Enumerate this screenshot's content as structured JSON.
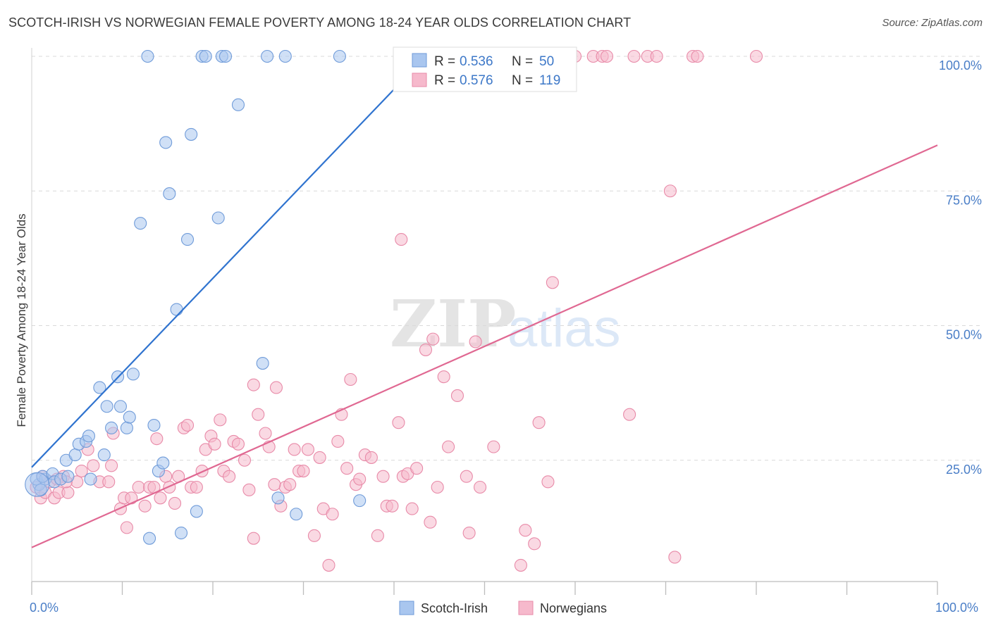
{
  "title": "SCOTCH-IRISH VS NORWEGIAN FEMALE POVERTY AMONG 18-24 YEAR OLDS CORRELATION CHART",
  "source": "Source: ZipAtlas.com",
  "watermark": {
    "zip": "ZIP",
    "atlas": "atlas"
  },
  "colors": {
    "scotch_fill": "#a9c6ef",
    "scotch_stroke": "#6f9bd9",
    "scotch_line": "#2f73cf",
    "norw_fill": "#f6b9cc",
    "norw_stroke": "#e88aa8",
    "norw_line": "#e06892",
    "tick": "#4a7ec7",
    "grid": "#d9d9d9"
  },
  "legend_top": [
    {
      "r_label": "R =",
      "r_value": "0.536",
      "n_label": "N =",
      "n_value": "50"
    },
    {
      "r_label": "R =",
      "r_value": "0.576",
      "n_label": "N =",
      "n_value": "119"
    }
  ],
  "chart_data": {
    "type": "scatter",
    "title": "SCOTCH-IRISH VS NORWEGIAN FEMALE POVERTY AMONG 18-24 YEAR OLDS CORRELATION CHART",
    "xlabel": "",
    "ylabel": "Female Poverty Among 18-24 Year Olds",
    "xlim": [
      0,
      100
    ],
    "ylim": [
      0,
      100
    ],
    "x_tick_labels": [
      "0.0%",
      "100.0%"
    ],
    "y_ticks": [
      25,
      50,
      75,
      100
    ],
    "y_tick_labels": [
      "25.0%",
      "50.0%",
      "75.0%",
      "100.0%"
    ],
    "grid": "horizontal dashed",
    "legend_position": "top-center",
    "series": [
      {
        "name": "Scotch-Irish",
        "R": 0.536,
        "N": 50,
        "trend": {
          "x": [
            0,
            43.5
          ],
          "y": [
            23.7,
            100
          ]
        },
        "points": [
          [
            0.8,
            20.5
          ],
          [
            0.5,
            21.5
          ],
          [
            1.5,
            21.5
          ],
          [
            1.2,
            22
          ],
          [
            2.3,
            22.5
          ],
          [
            2.5,
            21
          ],
          [
            3.2,
            21.5
          ],
          [
            4.0,
            22
          ],
          [
            3.8,
            25
          ],
          [
            4.8,
            26
          ],
          [
            5.2,
            28
          ],
          [
            6.0,
            28.5
          ],
          [
            6.3,
            29.5
          ],
          [
            7.5,
            38.5
          ],
          [
            8.0,
            26
          ],
          [
            8.3,
            35
          ],
          [
            8.8,
            31
          ],
          [
            9.5,
            40.5
          ],
          [
            9.8,
            35
          ],
          [
            10.5,
            31
          ],
          [
            10.8,
            33
          ],
          [
            11.2,
            41
          ],
          [
            12.0,
            69
          ],
          [
            12.8,
            100
          ],
          [
            13.0,
            10.5
          ],
          [
            13.5,
            31.5
          ],
          [
            14.0,
            23
          ],
          [
            14.5,
            24.5
          ],
          [
            14.8,
            84
          ],
          [
            15.2,
            74.5
          ],
          [
            16.0,
            53
          ],
          [
            16.5,
            11.5
          ],
          [
            17.2,
            66
          ],
          [
            17.6,
            85.5
          ],
          [
            18.2,
            15.5
          ],
          [
            18.8,
            100
          ],
          [
            19.2,
            100
          ],
          [
            20.6,
            70
          ],
          [
            21.0,
            100
          ],
          [
            21.4,
            100
          ],
          [
            22.8,
            91
          ],
          [
            25.5,
            43
          ],
          [
            26.0,
            100
          ],
          [
            27.2,
            18
          ],
          [
            28.0,
            100
          ],
          [
            29.2,
            15
          ],
          [
            34.0,
            100
          ],
          [
            36.2,
            17.5
          ],
          [
            6.5,
            21.5
          ],
          [
            1.0,
            19.5
          ]
        ]
      },
      {
        "name": "Norwegians",
        "R": 0.576,
        "N": 119,
        "trend": {
          "x": [
            0,
            100
          ],
          "y": [
            8.8,
            83.5
          ]
        },
        "points": [
          [
            0.5,
            20
          ],
          [
            1.0,
            18
          ],
          [
            1.5,
            19
          ],
          [
            2.0,
            21
          ],
          [
            2.5,
            18
          ],
          [
            3.0,
            19
          ],
          [
            3.5,
            22
          ],
          [
            4.0,
            19
          ],
          [
            5.0,
            21
          ],
          [
            5.5,
            23
          ],
          [
            6.2,
            27
          ],
          [
            6.8,
            24
          ],
          [
            7.5,
            21
          ],
          [
            8.5,
            21
          ],
          [
            8.8,
            24
          ],
          [
            9.0,
            30
          ],
          [
            9.8,
            16
          ],
          [
            10.2,
            18
          ],
          [
            10.5,
            12.5
          ],
          [
            11.0,
            18
          ],
          [
            11.8,
            20
          ],
          [
            12.5,
            16.5
          ],
          [
            13.0,
            20
          ],
          [
            13.5,
            20
          ],
          [
            13.8,
            29
          ],
          [
            14.2,
            18
          ],
          [
            14.8,
            22
          ],
          [
            15.2,
            20
          ],
          [
            15.8,
            17
          ],
          [
            16.2,
            22
          ],
          [
            16.8,
            31
          ],
          [
            17.2,
            31.5
          ],
          [
            17.6,
            20
          ],
          [
            18.2,
            20
          ],
          [
            18.8,
            23
          ],
          [
            19.2,
            27
          ],
          [
            19.8,
            29.5
          ],
          [
            20.2,
            28
          ],
          [
            20.8,
            32.5
          ],
          [
            21.2,
            23
          ],
          [
            21.8,
            22
          ],
          [
            22.3,
            28.5
          ],
          [
            22.8,
            28
          ],
          [
            23.5,
            25
          ],
          [
            24.0,
            19.5
          ],
          [
            24.5,
            39
          ],
          [
            24.5,
            10.5
          ],
          [
            25.0,
            33.5
          ],
          [
            25.8,
            30
          ],
          [
            26.2,
            27.5
          ],
          [
            27.0,
            38.5
          ],
          [
            27.5,
            16.5
          ],
          [
            28.0,
            20
          ],
          [
            28.5,
            20.5
          ],
          [
            29.0,
            27
          ],
          [
            29.5,
            23
          ],
          [
            30.0,
            23
          ],
          [
            30.5,
            27
          ],
          [
            31.2,
            11
          ],
          [
            31.8,
            25.5
          ],
          [
            32.2,
            16
          ],
          [
            32.8,
            5.5
          ],
          [
            33.2,
            15
          ],
          [
            33.8,
            28.5
          ],
          [
            34.2,
            33.5
          ],
          [
            34.8,
            23.5
          ],
          [
            35.2,
            40
          ],
          [
            35.8,
            20.5
          ],
          [
            36.2,
            21.5
          ],
          [
            36.8,
            26
          ],
          [
            37.5,
            25.5
          ],
          [
            38.2,
            11
          ],
          [
            38.8,
            22
          ],
          [
            39.2,
            16.5
          ],
          [
            39.8,
            16.5
          ],
          [
            40.5,
            32
          ],
          [
            41.0,
            22
          ],
          [
            41.5,
            22.5
          ],
          [
            42.0,
            16
          ],
          [
            42.5,
            23.5
          ],
          [
            43.5,
            45.5
          ],
          [
            44.0,
            13.5
          ],
          [
            44.3,
            47.5
          ],
          [
            44.8,
            20
          ],
          [
            45.5,
            40.5
          ],
          [
            46.0,
            27.5
          ],
          [
            47.0,
            37
          ],
          [
            48.0,
            22
          ],
          [
            48.3,
            11.5
          ],
          [
            49.0,
            47
          ],
          [
            49.5,
            20
          ],
          [
            51.0,
            27.5
          ],
          [
            53.5,
            100
          ],
          [
            54.0,
            5.5
          ],
          [
            54.5,
            12
          ],
          [
            55.5,
            9.5
          ],
          [
            56.0,
            32
          ],
          [
            57.0,
            21
          ],
          [
            57.5,
            58
          ],
          [
            60.0,
            100
          ],
          [
            62.0,
            100
          ],
          [
            63.0,
            100
          ],
          [
            63.5,
            100
          ],
          [
            66.0,
            33.5
          ],
          [
            66.5,
            100
          ],
          [
            68.0,
            100
          ],
          [
            69.0,
            100
          ],
          [
            70.5,
            75
          ],
          [
            71.0,
            7
          ],
          [
            73.0,
            100
          ],
          [
            73.5,
            100
          ],
          [
            80.0,
            100
          ],
          [
            40.8,
            66
          ],
          [
            1.2,
            22
          ],
          [
            2.8,
            21.5
          ],
          [
            3.8,
            21
          ],
          [
            26.8,
            20.5
          ]
        ]
      }
    ]
  }
}
